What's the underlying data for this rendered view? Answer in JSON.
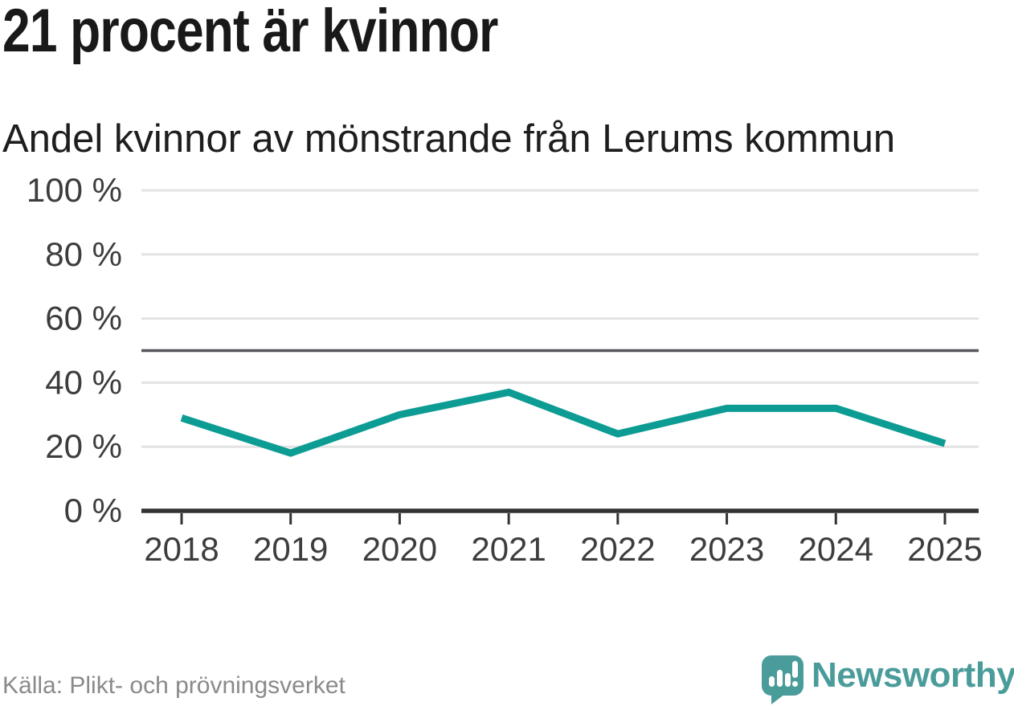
{
  "chart_data": {
    "type": "line",
    "title": "21 procent är kvinnor",
    "subtitle": "Andel kvinnor av mönstrande från Lerums kommun",
    "source": "Källa: Plikt- och prövningsverket",
    "x": [
      "2018",
      "2019",
      "2020",
      "2021",
      "2022",
      "2023",
      "2024",
      "2025"
    ],
    "series": [
      {
        "name": "Andel kvinnor av mönstrande",
        "values": [
          29,
          18,
          30,
          37,
          24,
          32,
          32,
          21
        ]
      }
    ],
    "unit": "%",
    "ylim": [
      0,
      100
    ],
    "y_ticks": [
      0,
      20,
      40,
      60,
      80,
      100
    ],
    "y_tick_format": "{v} %",
    "reference_line": 50,
    "grid": true,
    "legend": false,
    "line_color": "#0d9c94"
  },
  "footer": {
    "brand": "Newsworthy"
  },
  "style": {
    "grid_color": "#e3e3e3",
    "reference_color": "#55555a",
    "axis_color": "#333333",
    "tick_label_color": "#3d3d3d",
    "title_color": "#191919",
    "subtitle_color": "#1e1e1e",
    "source_color": "#8a8a8a",
    "brand_color": "#4a9c9b"
  }
}
